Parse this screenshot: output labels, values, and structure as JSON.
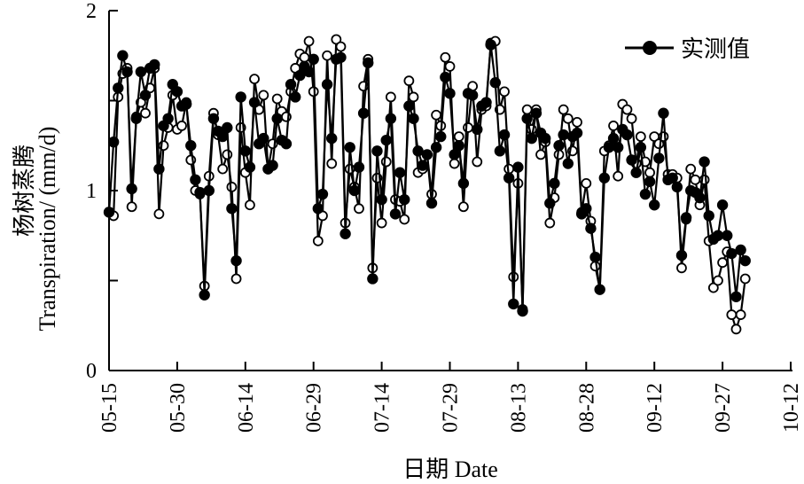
{
  "chart_data": {
    "type": "line",
    "xlabel": "日期 Date",
    "ylabel_line1": "杨树蒸腾",
    "ylabel_line2": "Transpiration/ (mm/d)",
    "x_ticks": [
      "05-15",
      "05-30",
      "06-14",
      "06-29",
      "07-14",
      "07-29",
      "08-13",
      "08-28",
      "09-12",
      "09-27",
      "10-12"
    ],
    "y_ticks": [
      0,
      1,
      2
    ],
    "ylim": [
      0,
      2
    ],
    "x_range_days": [
      0,
      150
    ],
    "grid": false,
    "legend_position": "top-right",
    "series": [
      {
        "name": "实测值",
        "marker": "filled-circle",
        "color": "#000000",
        "day_offset_from": "05-15",
        "values": [
          0.88,
          1.27,
          1.57,
          1.75,
          1.66,
          1.01,
          1.4,
          1.66,
          1.53,
          1.68,
          1.7,
          1.12,
          1.36,
          1.4,
          1.59,
          1.55,
          1.47,
          1.48,
          1.25,
          1.06,
          0.99,
          0.42,
          1.0,
          1.4,
          1.33,
          1.3,
          1.35,
          0.9,
          0.61,
          1.52,
          1.22,
          1.13,
          1.49,
          1.26,
          1.29,
          1.12,
          1.14,
          1.4,
          1.28,
          1.26,
          1.59,
          1.52,
          1.64,
          1.69,
          1.66,
          1.73,
          0.9,
          0.98,
          1.59,
          1.29,
          1.73,
          1.74,
          0.76,
          1.24,
          1.0,
          1.13,
          1.43,
          1.71,
          0.51,
          1.22,
          0.95,
          1.28,
          1.4,
          0.87,
          1.1,
          0.95,
          1.47,
          1.4,
          1.22,
          1.14,
          1.2,
          0.93,
          1.24,
          1.3,
          1.63,
          1.54,
          1.2,
          1.25,
          1.04,
          1.54,
          1.53,
          1.34,
          1.47,
          1.49,
          1.81,
          1.6,
          1.22,
          1.31,
          1.07,
          0.37,
          1.13,
          0.33,
          1.4,
          1.29,
          1.43,
          1.32,
          1.29,
          0.93,
          1.04,
          1.25,
          1.31,
          1.15,
          1.3,
          1.32,
          0.87,
          0.9,
          0.79,
          0.63,
          0.45,
          1.07,
          1.24,
          1.29,
          1.24,
          1.34,
          1.31,
          1.17,
          1.1,
          1.24,
          0.98,
          1.05,
          0.92,
          1.18,
          1.43,
          1.06,
          1.07,
          1.02,
          0.64,
          0.85,
          1.0,
          0.99,
          0.96,
          1.16,
          0.86,
          0.73,
          0.75,
          0.92,
          0.75,
          0.65,
          0.41,
          0.67,
          0.61
        ]
      },
      {
        "name": "",
        "marker": "open-circle",
        "color": "#000000",
        "day_offset_from": "05-15",
        "values": [
          0.88,
          0.86,
          1.52,
          1.65,
          1.68,
          0.91,
          1.41,
          1.49,
          1.43,
          1.57,
          1.68,
          0.87,
          1.25,
          1.35,
          1.53,
          1.34,
          1.36,
          1.49,
          1.17,
          1.0,
          0.98,
          0.47,
          1.08,
          1.43,
          1.31,
          1.12,
          1.2,
          1.02,
          0.51,
          1.35,
          1.1,
          0.92,
          1.62,
          1.45,
          1.53,
          1.12,
          1.26,
          1.51,
          1.44,
          1.41,
          1.55,
          1.68,
          1.76,
          1.74,
          1.83,
          1.55,
          0.72,
          0.86,
          1.75,
          1.15,
          1.84,
          1.8,
          0.82,
          1.12,
          1.02,
          0.9,
          1.58,
          1.73,
          0.57,
          1.07,
          0.82,
          1.16,
          1.52,
          0.95,
          0.94,
          0.84,
          1.61,
          1.52,
          1.1,
          1.12,
          1.2,
          0.98,
          1.42,
          1.36,
          1.74,
          1.69,
          1.15,
          1.3,
          0.91,
          1.35,
          1.58,
          1.16,
          1.45,
          1.47,
          1.82,
          1.83,
          1.45,
          1.55,
          1.12,
          0.52,
          1.04,
          0.34,
          1.45,
          1.34,
          1.45,
          1.2,
          1.27,
          0.82,
          0.96,
          1.2,
          1.45,
          1.4,
          1.22,
          1.38,
          0.88,
          1.04,
          0.83,
          0.58,
          0.45,
          1.22,
          1.25,
          1.36,
          1.08,
          1.48,
          1.45,
          1.4,
          1.15,
          1.3,
          1.16,
          1.1,
          1.3,
          1.26,
          1.3,
          1.09,
          1.09,
          1.07,
          0.57,
          0.84,
          1.12,
          1.06,
          0.92,
          1.06,
          0.72,
          0.46,
          0.5,
          0.6,
          0.66,
          0.31,
          0.23,
          0.31,
          0.51
        ]
      }
    ]
  }
}
